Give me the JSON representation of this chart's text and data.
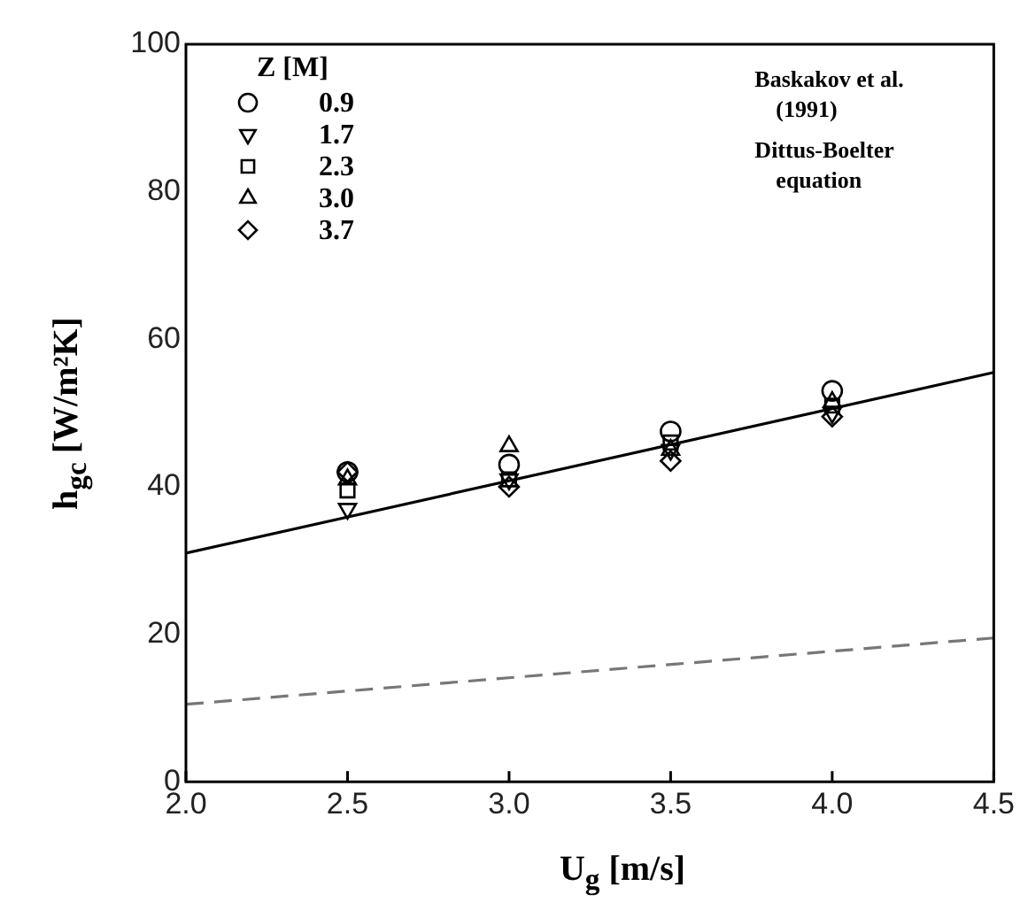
{
  "chart_data": {
    "type": "scatter",
    "xlabel": "U$_{g}$ [m/s]",
    "ylabel": "h$_{gc}$ [W/m²K]",
    "legend_title": "Z [M]",
    "legend": "top left",
    "grid": false,
    "xlim": [
      2.0,
      4.5
    ],
    "xticks": [
      {
        "value": 2,
        "label": "2.0"
      },
      {
        "value": 2.5,
        "label": "2.5"
      },
      {
        "value": 3,
        "label": "3.0"
      },
      {
        "value": 3.5,
        "label": "3.5"
      },
      {
        "value": 4,
        "label": "4.0"
      },
      {
        "value": 4.5,
        "label": "4.5"
      }
    ],
    "ylim": [
      0,
      100
    ],
    "yticks": [
      0,
      20,
      40,
      60,
      80,
      100
    ],
    "annotations": [
      "Baskakov et al.\n(1991)",
      "Dittus-Boelter\nequation"
    ],
    "series": [
      {
        "name": "0.9",
        "color": "#000000",
        "marker": "circle",
        "x": [
          2.5,
          3.0,
          3.5,
          4.0
        ],
        "values": [
          42,
          43,
          47.5,
          53
        ]
      },
      {
        "name": "1.7",
        "color": "#000000",
        "marker": "triangle-down",
        "x": [
          2.5,
          3.0,
          3.5,
          4.0
        ],
        "values": [
          37,
          41,
          45,
          50
        ]
      },
      {
        "name": "2.3",
        "color": "#000000",
        "marker": "square",
        "x": [
          2.5,
          3.0,
          3.5,
          4.0
        ],
        "values": [
          39.5,
          41,
          46,
          51
        ]
      },
      {
        "name": "3.0",
        "color": "#000000",
        "marker": "triangle",
        "x": [
          2.5,
          3.0,
          3.5,
          4.0
        ],
        "values": [
          41,
          45.5,
          45,
          51.5
        ]
      },
      {
        "name": "3.7",
        "color": "#000000",
        "marker": "diamond",
        "x": [
          2.5,
          3.0,
          3.5,
          4.0
        ],
        "values": [
          42,
          40,
          43.5,
          49.5
        ]
      },
      {
        "type": "line",
        "color": "#000000",
        "line_style": "solid",
        "marker": "none",
        "x": [
          2.0,
          4.5
        ],
        "values": [
          31,
          55.5
        ]
      },
      {
        "type": "line",
        "color": "#777777",
        "line_style": "dashed",
        "marker": "none",
        "x": [
          2.0,
          4.5
        ],
        "values": [
          10.5,
          19.5
        ]
      }
    ]
  }
}
